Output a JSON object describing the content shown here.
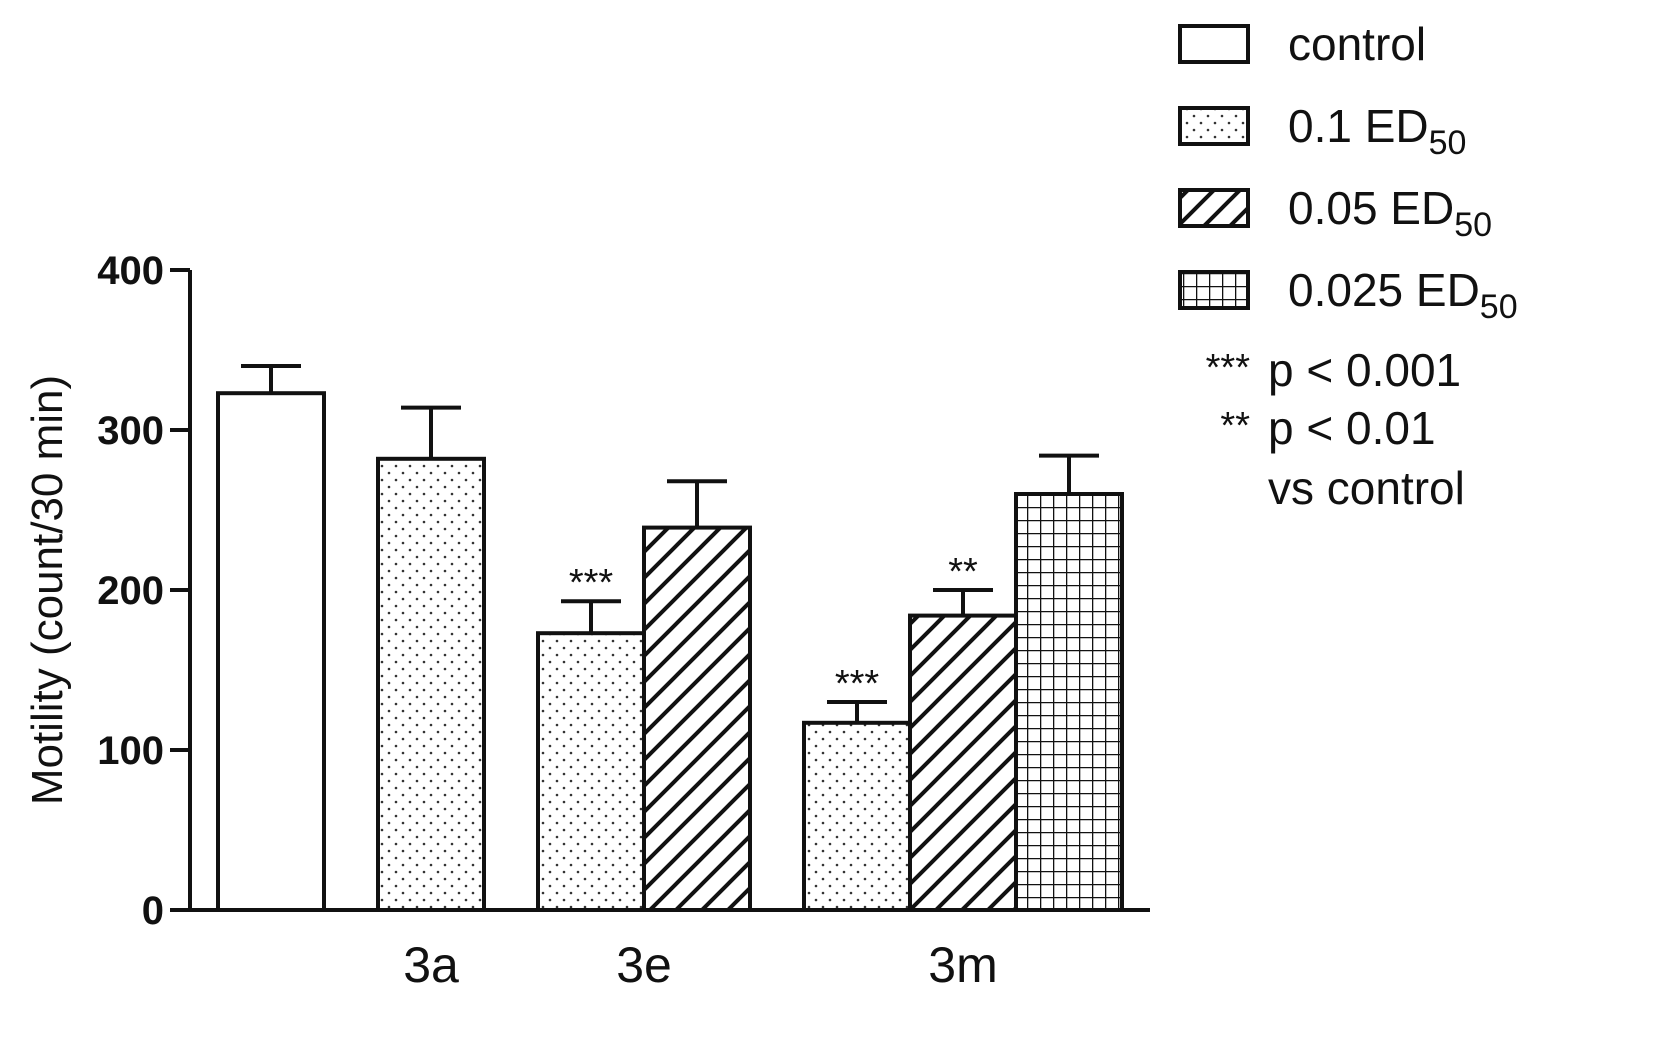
{
  "chart_data": {
    "type": "bar",
    "ylabel": "Motility (count/30 min)",
    "xlabel": "",
    "ylim": [
      0,
      400
    ],
    "yticks": [
      0,
      100,
      200,
      300,
      400
    ],
    "groups": [
      {
        "label": "",
        "bars": [
          {
            "series": "control",
            "value": 323,
            "error": 17
          }
        ]
      },
      {
        "label": "3a",
        "bars": [
          {
            "series": "0.1 ED50",
            "value": 282,
            "error": 32
          }
        ]
      },
      {
        "label": "3e",
        "bars": [
          {
            "series": "0.1 ED50",
            "value": 173,
            "error": 20,
            "sig": "***"
          },
          {
            "series": "0.05 ED50",
            "value": 239,
            "error": 29
          }
        ]
      },
      {
        "label": "3m",
        "bars": [
          {
            "series": "0.1 ED50",
            "value": 117,
            "error": 13,
            "sig": "***"
          },
          {
            "series": "0.05 ED50",
            "value": 184,
            "error": 16,
            "sig": "**"
          },
          {
            "series": "0.025 ED50",
            "value": 260,
            "error": 24
          }
        ]
      }
    ],
    "legend": {
      "placement": "top-right",
      "entries": [
        {
          "key": "control",
          "base": "control",
          "sub": "",
          "pattern": "none"
        },
        {
          "key": "0.1 ED50",
          "base": "0.1 ED",
          "sub": "50",
          "pattern": "dots"
        },
        {
          "key": "0.05 ED50",
          "base": "0.05 ED",
          "sub": "50",
          "pattern": "hatch"
        },
        {
          "key": "0.025 ED50",
          "base": "0.025 ED",
          "sub": "50",
          "pattern": "grid"
        }
      ],
      "notes": [
        {
          "stars": "***",
          "text": "p < 0.001"
        },
        {
          "stars": "**",
          "text": "p < 0.01"
        },
        {
          "stars": "",
          "text": "vs control"
        }
      ]
    }
  }
}
